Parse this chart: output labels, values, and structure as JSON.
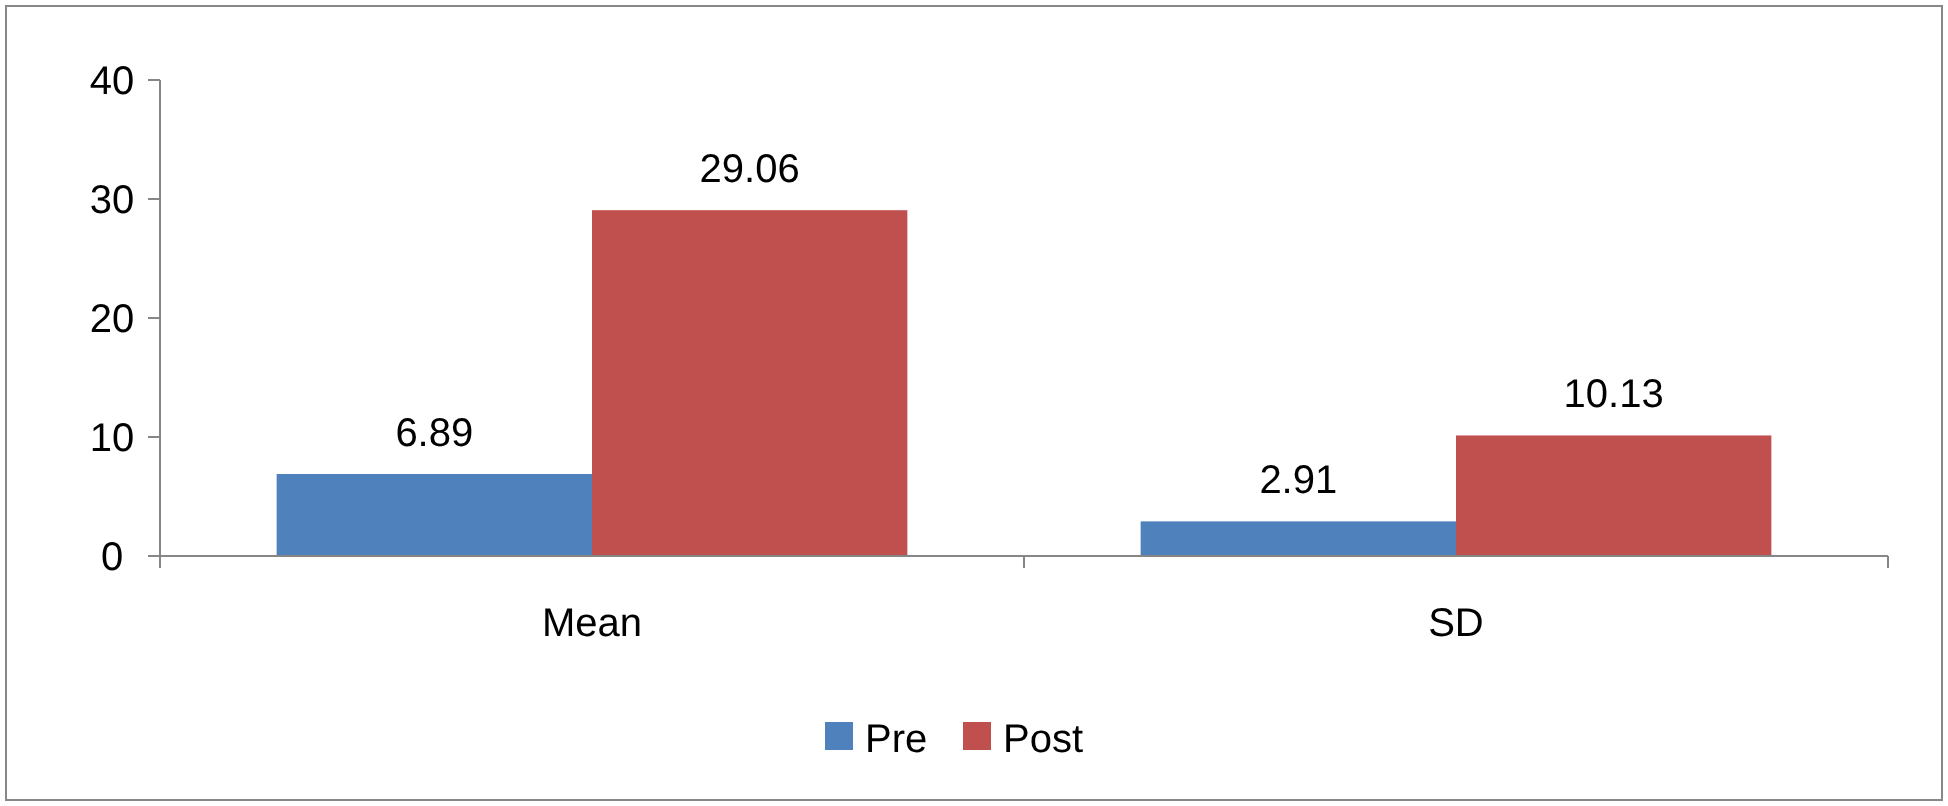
{
  "chart_data": {
    "type": "bar",
    "categories": [
      "Mean",
      "SD"
    ],
    "series": [
      {
        "name": "Pre",
        "color": "#4f81bd",
        "values": [
          6.89,
          2.91
        ]
      },
      {
        "name": "Post",
        "color": "#c0504d",
        "values": [
          29.06,
          10.13
        ]
      }
    ],
    "ylim": [
      0,
      40
    ],
    "yticks": [
      0,
      10,
      20,
      30,
      40
    ],
    "grid": false,
    "legend": "bottom",
    "data_labels": true
  }
}
